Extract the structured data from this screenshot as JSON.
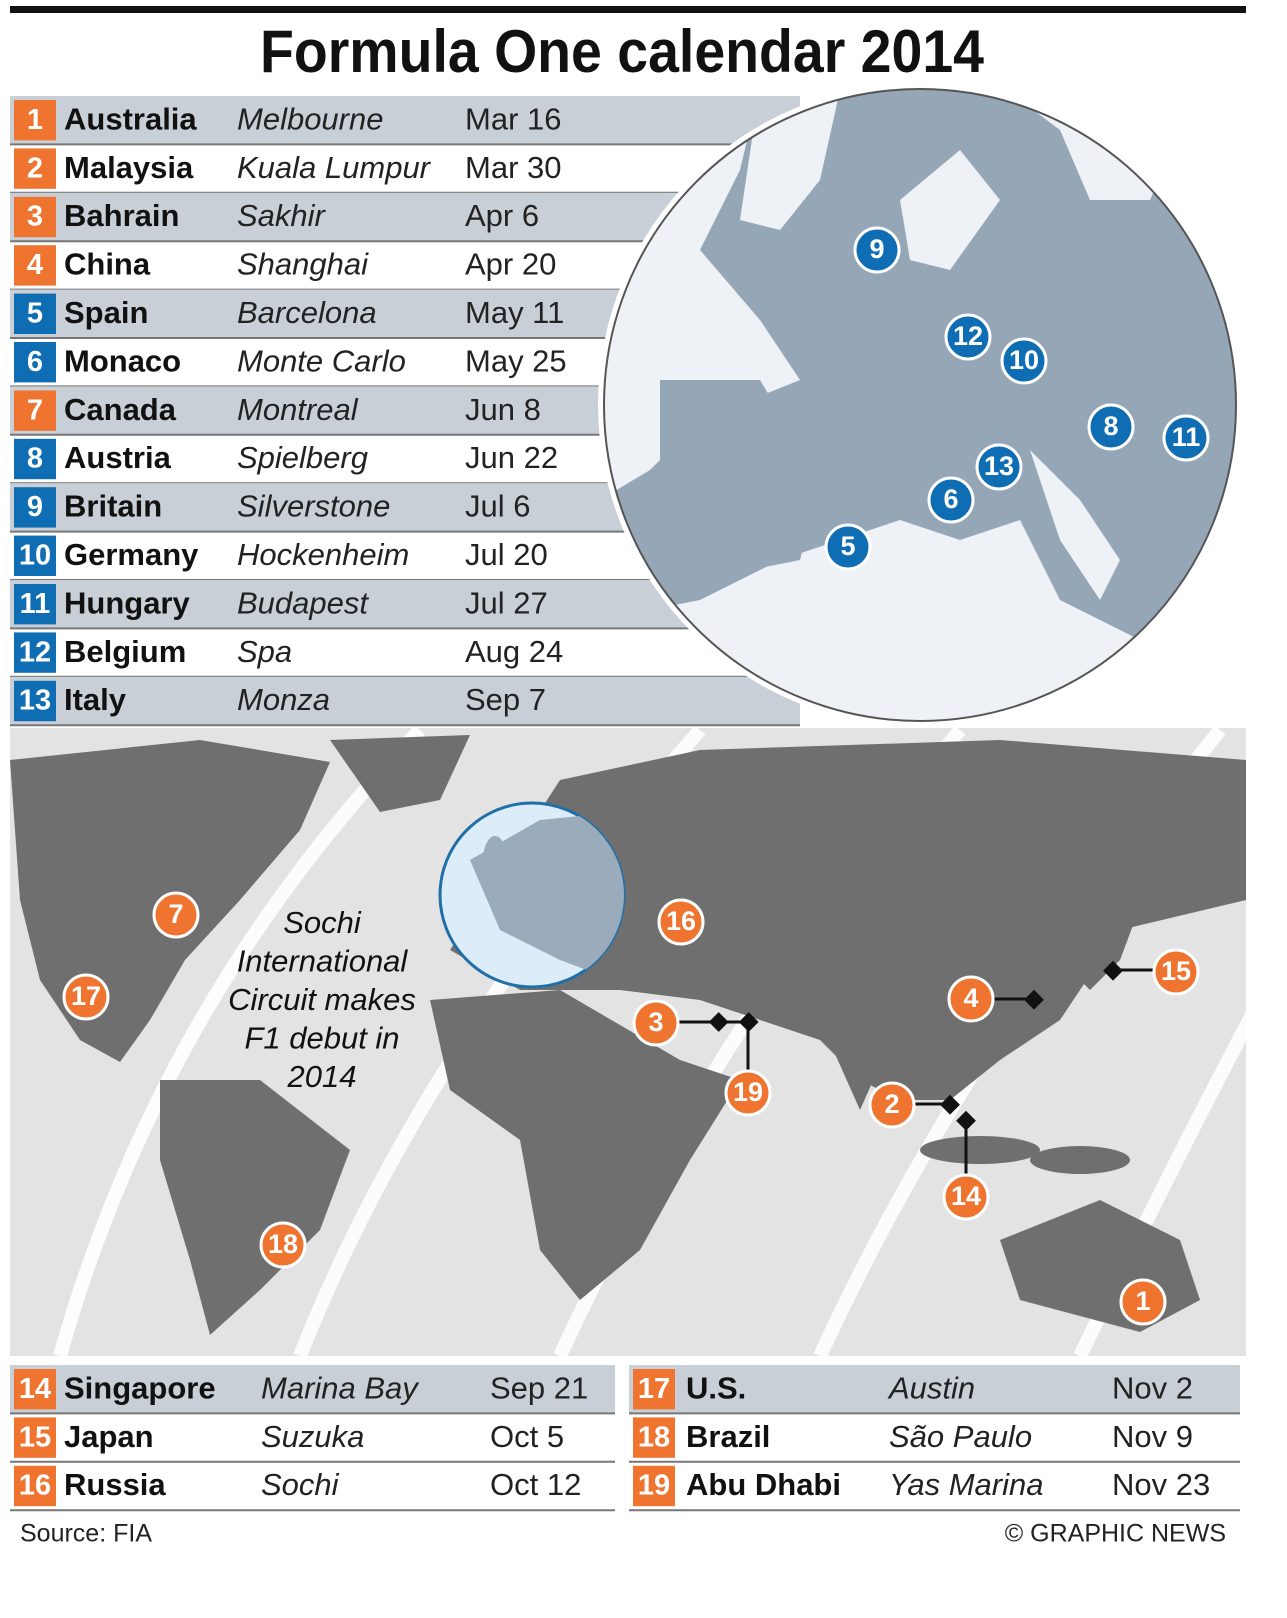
{
  "header": {
    "title": "Formula One calendar 2014"
  },
  "races": [
    {
      "num": "1",
      "country": "Australia",
      "circuit": "Melbourne",
      "date": "Mar 16",
      "color": "#ee7430"
    },
    {
      "num": "2",
      "country": "Malaysia",
      "circuit": "Kuala Lumpur",
      "date": "Mar 30",
      "color": "#ee7430"
    },
    {
      "num": "3",
      "country": "Bahrain",
      "circuit": "Sakhir",
      "date": "Apr 6",
      "color": "#ee7430"
    },
    {
      "num": "4",
      "country": "China",
      "circuit": "Shanghai",
      "date": "Apr 20",
      "color": "#ee7430"
    },
    {
      "num": "5",
      "country": "Spain",
      "circuit": "Barcelona",
      "date": "May 11",
      "color": "#0f6db3"
    },
    {
      "num": "6",
      "country": "Monaco",
      "circuit": "Monte Carlo",
      "date": "May 25",
      "color": "#0f6db3"
    },
    {
      "num": "7",
      "country": "Canada",
      "circuit": "Montreal",
      "date": "Jun 8",
      "color": "#ee7430"
    },
    {
      "num": "8",
      "country": "Austria",
      "circuit": "Spielberg",
      "date": "Jun 22",
      "color": "#0f6db3"
    },
    {
      "num": "9",
      "country": "Britain",
      "circuit": "Silverstone",
      "date": "Jul 6",
      "color": "#0f6db3"
    },
    {
      "num": "10",
      "country": "Germany",
      "circuit": "Hockenheim",
      "date": "Jul 20",
      "color": "#0f6db3"
    },
    {
      "num": "11",
      "country": "Hungary",
      "circuit": "Budapest",
      "date": "Jul 27",
      "color": "#0f6db3"
    },
    {
      "num": "12",
      "country": "Belgium",
      "circuit": "Spa",
      "date": "Aug 24",
      "color": "#0f6db3"
    },
    {
      "num": "13",
      "country": "Italy",
      "circuit": "Monza",
      "date": "Sep 7",
      "color": "#0f6db3"
    },
    {
      "num": "14",
      "country": "Singapore",
      "circuit": "Marina Bay",
      "date": "Sep 21",
      "color": "#ee7430"
    },
    {
      "num": "15",
      "country": "Japan",
      "circuit": "Suzuka",
      "date": "Oct 5",
      "color": "#ee7430"
    },
    {
      "num": "16",
      "country": "Russia",
      "circuit": "Sochi",
      "date": "Oct 12",
      "color": "#ee7430"
    },
    {
      "num": "17",
      "country": "U.S.",
      "circuit": "Austin",
      "date": "Nov 2",
      "color": "#ee7430"
    },
    {
      "num": "18",
      "country": "Brazil",
      "circuit": "São Paulo",
      "date": "Nov 9",
      "color": "#ee7430"
    },
    {
      "num": "19",
      "country": "Abu Dhabi",
      "circuit": "Yas Marina",
      "date": "Nov 23",
      "color": "#ee7430"
    }
  ],
  "annotation": [
    "Sochi",
    "International",
    "Circuit makes",
    "F1 debut in",
    "2014"
  ],
  "footer": {
    "source": "Source: FIA",
    "credit": "© GRAPHIC NEWS"
  }
}
